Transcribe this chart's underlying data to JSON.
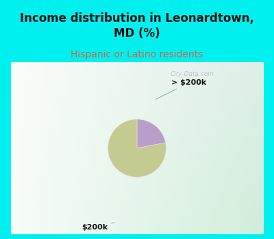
{
  "title": "Income distribution in Leonardtown,\nMD (%)",
  "subtitle": "Hispanic or Latino residents",
  "slices": [
    {
      "label": "$200k",
      "value": 78,
      "color": "#c5ca90"
    },
    {
      "label": "> $200k",
      "value": 22,
      "color": "#b89ec8"
    }
  ],
  "title_fontsize": 12,
  "subtitle_fontsize": 10,
  "subtitle_color": "#cc6644",
  "title_color": "#111111",
  "bg_cyan": "#00f0f0",
  "watermark": "City-Data.com",
  "annotation_gt200k": "> $200k",
  "annotation_200k": "$200k"
}
